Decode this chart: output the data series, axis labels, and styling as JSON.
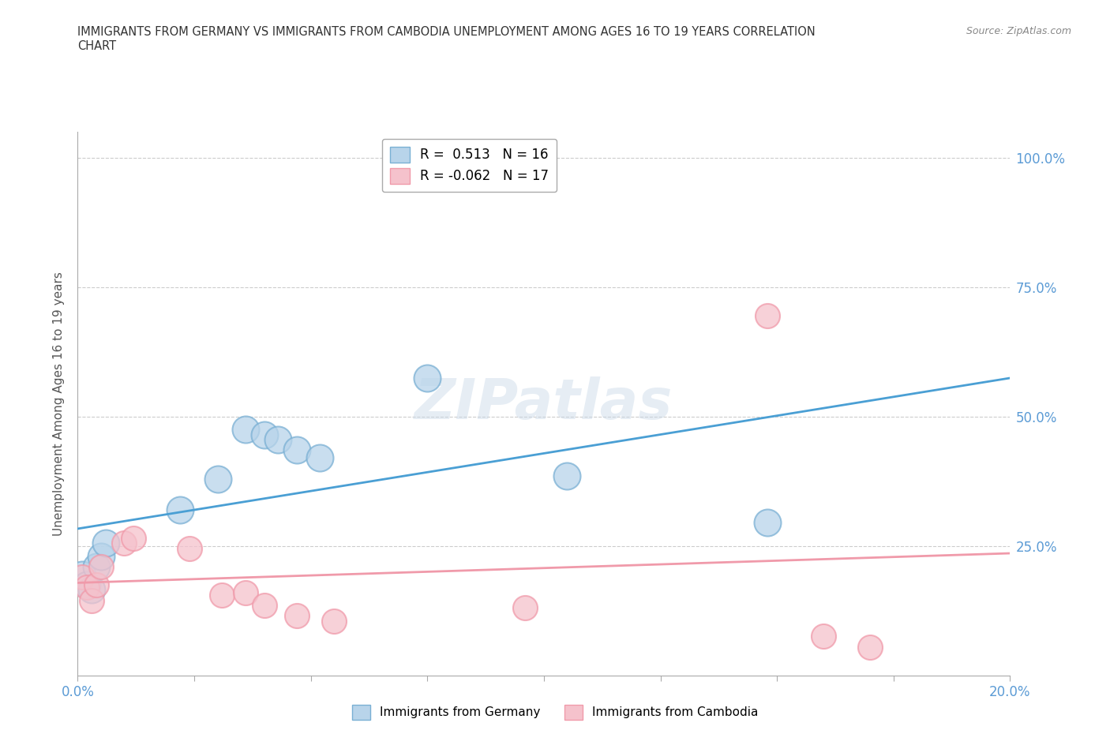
{
  "title_line1": "IMMIGRANTS FROM GERMANY VS IMMIGRANTS FROM CAMBODIA UNEMPLOYMENT AMONG AGES 16 TO 19 YEARS CORRELATION",
  "title_line2": "CHART",
  "source": "Source: ZipAtlas.com",
  "ylabel": "Unemployment Among Ages 16 to 19 years",
  "xlim": [
    0.0,
    0.2
  ],
  "ylim": [
    0.0,
    1.05
  ],
  "xticks": [
    0.0,
    0.025,
    0.05,
    0.075,
    0.1,
    0.125,
    0.15,
    0.175,
    0.2
  ],
  "yticks": [
    0.0,
    0.25,
    0.5,
    0.75,
    1.0
  ],
  "germany_color": "#b8d4ea",
  "germany_edge": "#7ab0d4",
  "cambodia_color": "#f5c2cc",
  "cambodia_edge": "#f09aaa",
  "regression_germany_color": "#4a9fd4",
  "regression_cambodia_color": "#f09aaa",
  "germany_R": 0.513,
  "germany_N": 16,
  "cambodia_R": -0.062,
  "cambodia_N": 17,
  "watermark": "ZIPatlas",
  "germany_x": [
    0.001,
    0.002,
    0.003,
    0.004,
    0.005,
    0.006,
    0.022,
    0.03,
    0.036,
    0.04,
    0.043,
    0.047,
    0.052,
    0.075,
    0.105,
    0.148
  ],
  "germany_y": [
    0.195,
    0.175,
    0.165,
    0.21,
    0.23,
    0.255,
    0.32,
    0.38,
    0.475,
    0.465,
    0.455,
    0.435,
    0.42,
    0.575,
    0.385,
    0.295
  ],
  "cambodia_x": [
    0.001,
    0.002,
    0.003,
    0.004,
    0.005,
    0.01,
    0.012,
    0.024,
    0.031,
    0.036,
    0.04,
    0.047,
    0.055,
    0.096,
    0.148,
    0.16,
    0.17
  ],
  "cambodia_y": [
    0.19,
    0.17,
    0.145,
    0.175,
    0.21,
    0.255,
    0.265,
    0.245,
    0.155,
    0.16,
    0.135,
    0.115,
    0.105,
    0.13,
    0.695,
    0.075,
    0.055
  ]
}
